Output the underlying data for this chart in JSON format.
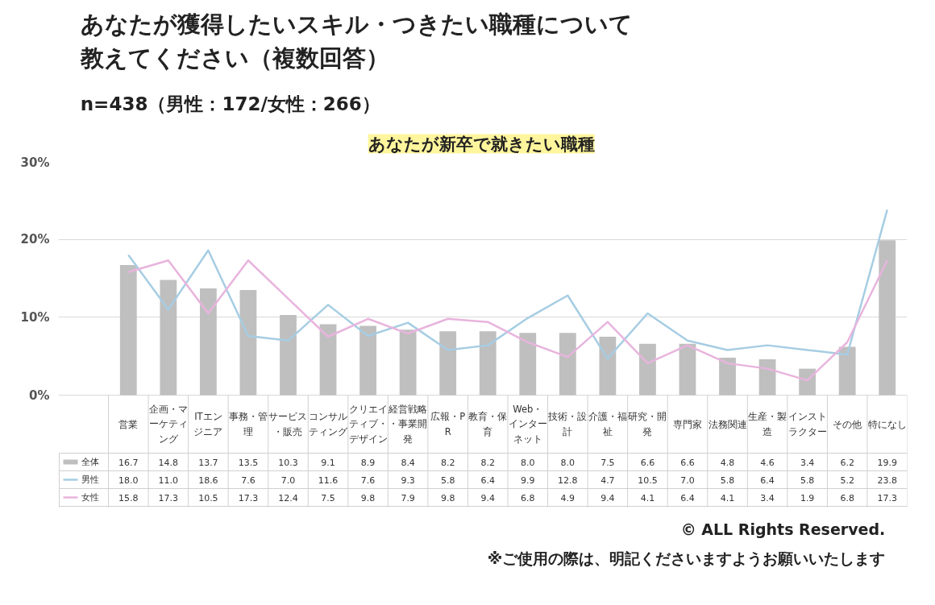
{
  "chart_data": {
    "type": "bar",
    "title": "あなたが獲得したいスキル・つきたい職種について教えてください（複数回答）",
    "subtitle": "n=438（男性：172/女性：266）",
    "annotations": [
      "あなたが新卒で就きたい職種",
      "© ALL Rights Reserved.",
      "※ご使用の際は、明記くださいますようお願いいたします"
    ],
    "categories": [
      "営業",
      "企画・マーケティング",
      "ITエンジニア",
      "事務・管理",
      "サービス・販売",
      "コンサルティング",
      "クリエイティブ・デザイン",
      "経営戦略・事業開発",
      "広報・PR",
      "教育・保育",
      "Web・インターネット",
      "技術・設計",
      "介護・福祉",
      "研究・開発",
      "専門家",
      "法務関連",
      "生産・製造",
      "インストラクター",
      "その他",
      "特になし"
    ],
    "series": [
      {
        "name": "全体",
        "color": "#bfbfbf",
        "values": [
          16.7,
          14.8,
          13.7,
          13.5,
          10.3,
          9.1,
          8.9,
          8.4,
          8.2,
          8.2,
          8.0,
          8.0,
          7.5,
          6.6,
          6.6,
          4.8,
          4.6,
          3.4,
          6.2,
          19.9
        ],
        "value_labels": [
          "16.7",
          "14.8",
          "13.7",
          "13.5",
          "10.3",
          "9.1",
          "8.9",
          "8.4",
          "8.2",
          "8.2",
          "8.0",
          "8.0",
          "7.5",
          "6.6",
          "6.6",
          "4.8",
          "4.6",
          "3.4",
          "6.2",
          "19.9"
        ]
      },
      {
        "name": "男性",
        "type": "line",
        "color": "#a6cde3",
        "values": [
          18.0,
          11.0,
          18.6,
          7.6,
          7.0,
          11.6,
          7.6,
          9.3,
          5.8,
          6.4,
          9.9,
          12.8,
          4.7,
          10.5,
          7.0,
          5.8,
          6.4,
          5.8,
          5.2,
          23.8
        ],
        "value_labels": [
          "18.0",
          "11.0",
          "18.6",
          "7.6",
          "7.0",
          "11.6",
          "7.6",
          "9.3",
          "5.8",
          "6.4",
          "9.9",
          "12.8",
          "4.7",
          "10.5",
          "7.0",
          "5.8",
          "6.4",
          "5.8",
          "5.2",
          "23.8"
        ]
      },
      {
        "name": "女性",
        "type": "line",
        "color": "#e8b4dd",
        "values": [
          15.8,
          17.3,
          10.5,
          17.3,
          12.4,
          7.5,
          9.8,
          7.9,
          9.8,
          9.4,
          6.8,
          4.9,
          9.4,
          4.1,
          6.4,
          4.1,
          3.4,
          1.9,
          6.8,
          17.3
        ],
        "value_labels": [
          "15.8",
          "17.3",
          "10.5",
          "17.3",
          "12.4",
          "7.5",
          "9.8",
          "7.9",
          "9.8",
          "9.4",
          "6.8",
          "4.9",
          "9.4",
          "4.1",
          "6.4",
          "4.1",
          "3.4",
          "1.9",
          "6.8",
          "17.3"
        ]
      }
    ],
    "ylim": [
      0,
      30
    ],
    "yticks": [
      {
        "value": 0,
        "label": "0%"
      },
      {
        "value": 10,
        "label": "10%"
      },
      {
        "value": 20,
        "label": "20%"
      },
      {
        "value": 30,
        "label": "30%"
      }
    ],
    "grid": "y",
    "legend": "bottom",
    "marker": "none",
    "line_style": "solid"
  }
}
